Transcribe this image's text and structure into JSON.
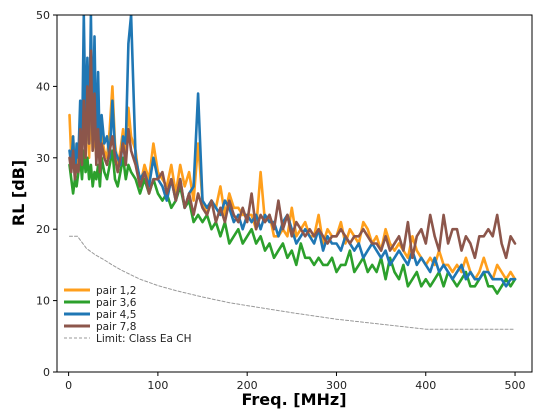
{
  "chart_data": {
    "type": "line",
    "title": "",
    "xlabel": "Freq. [MHz]",
    "ylabel": "RL  [dB]",
    "xlim": [
      -13,
      519
    ],
    "ylim": [
      0,
      50
    ],
    "xticks": [
      0,
      100,
      200,
      300,
      400,
      500
    ],
    "yticks": [
      0,
      10,
      20,
      30,
      40,
      50
    ],
    "grid": false,
    "legend": "lower-left",
    "series": [
      {
        "name": "pair 1,2",
        "color": "#ff9f1c",
        "style": "solid",
        "x": [
          1,
          3,
          5,
          7,
          9,
          11,
          13,
          15,
          17,
          19,
          21,
          23,
          25,
          27,
          29,
          31,
          33,
          35,
          37,
          40,
          43,
          46,
          49,
          52,
          55,
          58,
          61,
          64,
          67,
          70,
          75,
          80,
          85,
          90,
          95,
          100,
          105,
          110,
          115,
          120,
          125,
          130,
          135,
          140,
          145,
          150,
          155,
          160,
          165,
          170,
          175,
          180,
          185,
          190,
          195,
          200,
          205,
          210,
          215,
          220,
          225,
          230,
          235,
          240,
          245,
          250,
          255,
          260,
          265,
          270,
          275,
          280,
          285,
          290,
          295,
          300,
          305,
          310,
          315,
          320,
          325,
          330,
          335,
          340,
          345,
          350,
          355,
          360,
          365,
          370,
          375,
          380,
          385,
          390,
          395,
          400,
          405,
          410,
          415,
          420,
          425,
          430,
          435,
          440,
          445,
          450,
          455,
          460,
          465,
          470,
          475,
          480,
          485,
          490,
          495,
          500
        ],
        "y": [
          36,
          30,
          33,
          28,
          31,
          29,
          35,
          30,
          42,
          32,
          36,
          30,
          38,
          31,
          34,
          30,
          37,
          29,
          33,
          31,
          30,
          34,
          40,
          32,
          29,
          31,
          34,
          30,
          37,
          33,
          31,
          26,
          29,
          27,
          32,
          28,
          27,
          26,
          29,
          25,
          29,
          26,
          28,
          24,
          32,
          24,
          22,
          24,
          23,
          26,
          22,
          25,
          23,
          23,
          22,
          22,
          22,
          20,
          28,
          21,
          22,
          19,
          19,
          20,
          19,
          23,
          19,
          20,
          21,
          19,
          19,
          22,
          18,
          20,
          19,
          19,
          21,
          18,
          20,
          19,
          18,
          21,
          20,
          18,
          19,
          17,
          20,
          18,
          17,
          18,
          17,
          16,
          19,
          17,
          16,
          15,
          16,
          15,
          17,
          15,
          15,
          14,
          15,
          14,
          16,
          14,
          13,
          14,
          16,
          14,
          13,
          15,
          14,
          13,
          14,
          13
        ]
      },
      {
        "name": "pair 3,6",
        "color": "#2ca02c",
        "style": "solid",
        "x": [
          1,
          3,
          5,
          7,
          9,
          11,
          13,
          15,
          17,
          19,
          21,
          23,
          25,
          27,
          29,
          31,
          33,
          35,
          37,
          40,
          43,
          46,
          49,
          52,
          55,
          58,
          61,
          64,
          67,
          70,
          75,
          80,
          85,
          90,
          95,
          100,
          105,
          110,
          115,
          120,
          125,
          130,
          135,
          140,
          145,
          150,
          155,
          160,
          165,
          170,
          175,
          180,
          185,
          190,
          195,
          200,
          205,
          210,
          215,
          220,
          225,
          230,
          235,
          240,
          245,
          250,
          255,
          260,
          265,
          270,
          275,
          280,
          285,
          290,
          295,
          300,
          305,
          310,
          315,
          320,
          325,
          330,
          335,
          340,
          345,
          350,
          355,
          360,
          365,
          370,
          375,
          380,
          385,
          390,
          395,
          400,
          405,
          410,
          415,
          420,
          425,
          430,
          435,
          440,
          445,
          450,
          455,
          460,
          465,
          470,
          475,
          480,
          485,
          490,
          495,
          500
        ],
        "y": [
          29,
          27,
          25,
          27,
          26,
          28,
          30,
          27,
          31,
          28,
          30,
          27,
          29,
          26,
          28,
          27,
          29,
          26,
          30,
          28,
          27,
          29,
          31,
          27,
          26,
          28,
          30,
          27,
          29,
          28,
          27,
          25,
          27,
          25,
          27,
          25,
          24,
          25,
          23,
          24,
          26,
          23,
          24,
          21,
          22,
          21,
          22,
          20,
          21,
          19,
          21,
          18,
          19,
          20,
          18,
          19,
          20,
          18,
          19,
          17,
          18,
          16,
          17,
          18,
          16,
          17,
          15,
          18,
          16,
          16,
          15,
          16,
          15,
          15,
          16,
          14,
          15,
          15,
          17,
          14,
          15,
          16,
          14,
          15,
          14,
          16,
          13,
          16,
          14,
          13,
          15,
          12,
          13,
          14,
          12,
          13,
          12,
          13,
          14,
          12,
          14,
          13,
          12,
          13,
          14,
          12,
          12,
          13,
          14,
          12,
          12,
          11,
          12,
          13,
          12,
          13
        ]
      },
      {
        "name": "pair 4,5",
        "color": "#1f77b4",
        "style": "solid",
        "x": [
          1,
          3,
          5,
          7,
          9,
          11,
          13,
          15,
          17,
          19,
          21,
          23,
          25,
          27,
          29,
          31,
          33,
          35,
          37,
          40,
          43,
          46,
          49,
          52,
          55,
          58,
          61,
          64,
          67,
          70,
          75,
          80,
          85,
          90,
          95,
          100,
          105,
          110,
          115,
          120,
          125,
          130,
          135,
          140,
          145,
          150,
          155,
          160,
          165,
          170,
          175,
          180,
          185,
          190,
          195,
          200,
          205,
          210,
          215,
          220,
          225,
          230,
          235,
          240,
          245,
          250,
          255,
          260,
          265,
          270,
          275,
          280,
          285,
          290,
          295,
          300,
          305,
          310,
          315,
          320,
          325,
          330,
          335,
          340,
          345,
          350,
          355,
          360,
          365,
          370,
          375,
          380,
          385,
          390,
          395,
          400,
          405,
          410,
          415,
          420,
          425,
          430,
          435,
          440,
          445,
          450,
          455,
          460,
          465,
          470,
          475,
          480,
          485,
          490,
          495,
          500
        ],
        "y": [
          31,
          29,
          33,
          27,
          32,
          30,
          38,
          31,
          50,
          34,
          44,
          32,
          50,
          33,
          47,
          31,
          42,
          30,
          36,
          32,
          33,
          30,
          38,
          31,
          30,
          29,
          33,
          32,
          46,
          50,
          30,
          27,
          28,
          26,
          30,
          27,
          26,
          24,
          27,
          24,
          27,
          23,
          25,
          26,
          39,
          24,
          23,
          24,
          23,
          22,
          24,
          23,
          21,
          22,
          20,
          22,
          21,
          22,
          20,
          22,
          21,
          21,
          19,
          21,
          22,
          20,
          18,
          19,
          20,
          19,
          18,
          20,
          17,
          19,
          18,
          18,
          17,
          19,
          18,
          17,
          18,
          16,
          17,
          18,
          17,
          16,
          17,
          15,
          16,
          17,
          16,
          15,
          17,
          15,
          16,
          15,
          14,
          16,
          14,
          15,
          14,
          13,
          14,
          15,
          13,
          14,
          13,
          13,
          14,
          14,
          13,
          13,
          13,
          12,
          13,
          13
        ]
      },
      {
        "name": "pair 7,8",
        "color": "#8c564b",
        "style": "solid",
        "x": [
          1,
          3,
          5,
          7,
          9,
          11,
          13,
          15,
          17,
          19,
          21,
          23,
          25,
          27,
          29,
          31,
          33,
          35,
          37,
          40,
          43,
          46,
          49,
          52,
          55,
          58,
          61,
          64,
          67,
          70,
          75,
          80,
          85,
          90,
          95,
          100,
          105,
          110,
          115,
          120,
          125,
          130,
          135,
          140,
          145,
          150,
          155,
          160,
          165,
          170,
          175,
          180,
          185,
          190,
          195,
          200,
          205,
          210,
          215,
          220,
          225,
          230,
          235,
          240,
          245,
          250,
          255,
          260,
          265,
          270,
          275,
          280,
          285,
          290,
          295,
          300,
          305,
          310,
          315,
          320,
          325,
          330,
          335,
          340,
          345,
          350,
          355,
          360,
          365,
          370,
          375,
          380,
          385,
          390,
          395,
          400,
          405,
          410,
          415,
          420,
          425,
          430,
          435,
          440,
          445,
          450,
          455,
          460,
          465,
          470,
          475,
          480,
          485,
          490,
          495,
          500
        ],
        "y": [
          30,
          28,
          31,
          27,
          29,
          28,
          34,
          29,
          38,
          30,
          40,
          32,
          45,
          31,
          39,
          29,
          34,
          28,
          32,
          30,
          29,
          31,
          33,
          30,
          28,
          30,
          32,
          29,
          34,
          31,
          29,
          26,
          28,
          25,
          27,
          27,
          28,
          25,
          27,
          24,
          27,
          23,
          25,
          22,
          25,
          23,
          22,
          24,
          21,
          23,
          21,
          24,
          22,
          21,
          23,
          21,
          25,
          20,
          22,
          21,
          22,
          20,
          24,
          20,
          22,
          19,
          21,
          20,
          19,
          20,
          19,
          20,
          19,
          18,
          19,
          19,
          20,
          19,
          18,
          19,
          19,
          20,
          19,
          18,
          18,
          17,
          19,
          17,
          18,
          19,
          17,
          21,
          16,
          19,
          20,
          18,
          22,
          19,
          17,
          22,
          18,
          20,
          20,
          17,
          19,
          18,
          16,
          19,
          19,
          20,
          19,
          22,
          18,
          16,
          19,
          18
        ]
      },
      {
        "name": "Limit: Class Ea CH",
        "color": "#999999",
        "style": "dashed",
        "x": [
          1,
          10,
          20,
          30,
          40,
          50,
          60,
          70,
          80,
          100,
          120,
          150,
          180,
          200,
          250,
          300,
          350,
          400,
          450,
          500
        ],
        "y": [
          19,
          19,
          17.3,
          16.4,
          15.7,
          14.9,
          14.2,
          13.6,
          13.0,
          12.1,
          11.4,
          10.5,
          9.7,
          9.3,
          8.3,
          7.4,
          6.7,
          6.0,
          6.0,
          6.0
        ]
      }
    ]
  }
}
